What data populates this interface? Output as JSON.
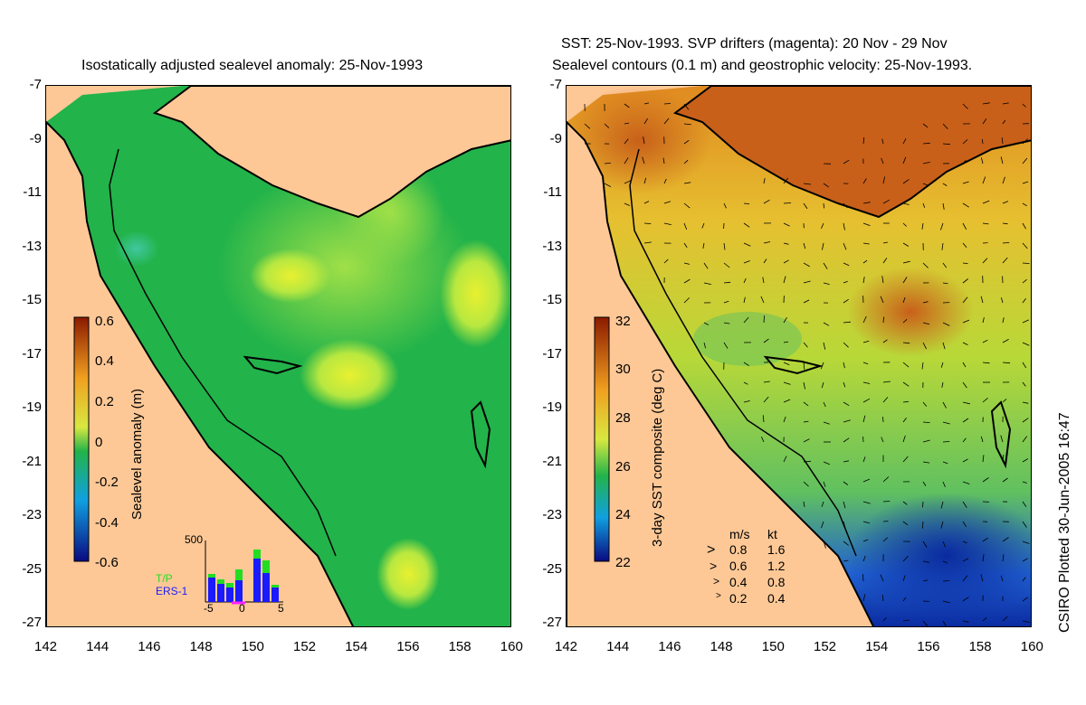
{
  "left_panel": {
    "title": "Isostatically adjusted sealevel anomaly: 25-Nov-1993",
    "colorbar": {
      "label": "Sealevel anomaly (m)",
      "ticks": [
        "0.6",
        "0.4",
        "0.2",
        "0",
        "-0.2",
        "-0.4",
        "-0.6"
      ]
    },
    "histogram": {
      "ymax_label": "500",
      "series": [
        "T/P",
        "ERS-1"
      ],
      "x_ticks": [
        "-5",
        "0",
        "5"
      ],
      "tp_color": "#22dd22",
      "ers_color": "#1a1aff"
    }
  },
  "right_panel": {
    "title_line1": "SST: 25-Nov-1993. SVP drifters (magenta): 20 Nov - 29 Nov",
    "title_line2": "Sealevel contours (0.1 m) and geostrophic velocity: 25-Nov-1993.",
    "colorbar": {
      "label": "3-day SST composite (deg C)",
      "ticks": [
        "32",
        "30",
        "28",
        "26",
        "24",
        "22"
      ]
    },
    "velocity_legend": {
      "header_ms": "m/s",
      "header_kt": "kt",
      "rows": [
        {
          "ms": "0.8",
          "kt": "1.6"
        },
        {
          "ms": "0.6",
          "kt": "1.2"
        },
        {
          "ms": "0.4",
          "kt": "0.8"
        },
        {
          "ms": "0.2",
          "kt": "0.4"
        }
      ]
    }
  },
  "axes": {
    "lat_ticks": [
      "-7",
      "-9",
      "-11",
      "-13",
      "-15",
      "-17",
      "-19",
      "-21",
      "-23",
      "-25",
      "-27"
    ],
    "lon_ticks": [
      "142",
      "144",
      "146",
      "148",
      "150",
      "152",
      "154",
      "156",
      "158",
      "160"
    ]
  },
  "credit": "CSIRO Plotted 30-Jun-2005 16:47",
  "colors": {
    "land": "#fdc896",
    "sea_base": "#22b34a",
    "anomaly_high": "#c8f040",
    "sst_warm": "#f0a020",
    "sst_cold": "#1030c0"
  }
}
